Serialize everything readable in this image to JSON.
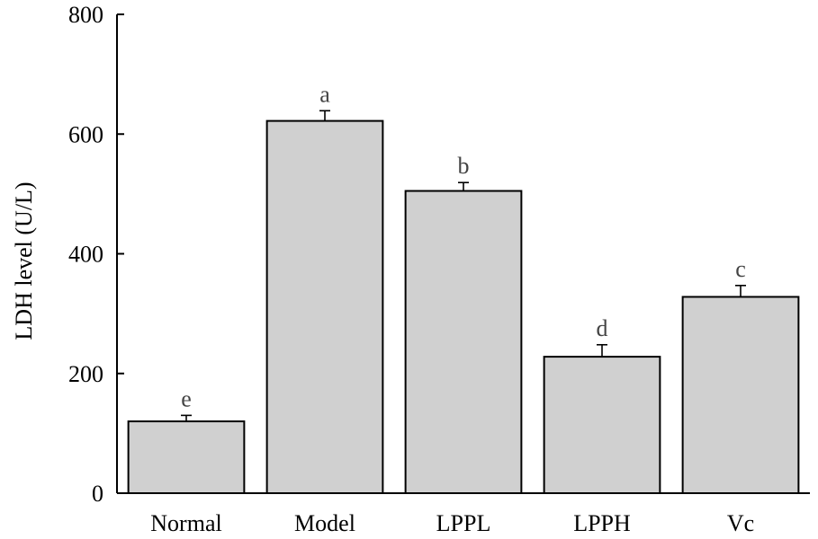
{
  "chart_data": {
    "type": "bar",
    "ylabel": "LDH level (U/L)",
    "xlabel": "",
    "ylim": [
      0,
      800
    ],
    "yticks": [
      0,
      200,
      400,
      600,
      800
    ],
    "categories": [
      "Normal",
      "Model",
      "LPPL",
      "LPPH",
      "Vc"
    ],
    "values": [
      120,
      622,
      505,
      228,
      328
    ],
    "errors": [
      10,
      17,
      14,
      20,
      19
    ],
    "significance": [
      "e",
      "a",
      "b",
      "d",
      "c"
    ],
    "bar_color": "#d0d0d0",
    "grid": false,
    "legend": "none"
  }
}
